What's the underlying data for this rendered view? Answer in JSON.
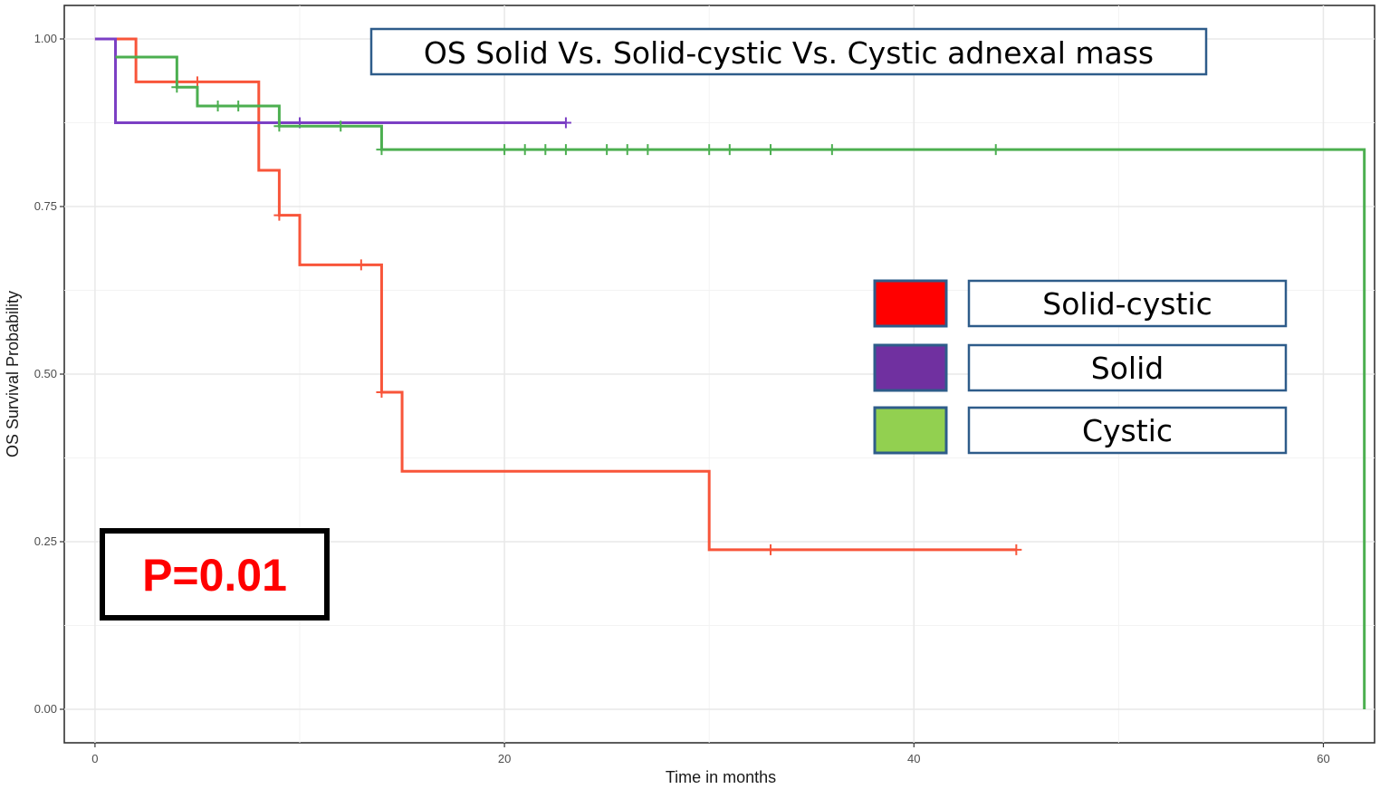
{
  "chart_data": {
    "type": "line",
    "subtype": "kaplan-meier",
    "title": "OS Solid Vs. Solid-cystic Vs. Cystic adnexal mass",
    "xlabel": "Time in months",
    "ylabel": "OS Survival Probability",
    "xlim": [
      -1.5,
      62.5
    ],
    "ylim": [
      -0.05,
      1.05
    ],
    "x_ticks": [
      0,
      20,
      40,
      60
    ],
    "x_tick_labels": [
      "0",
      "20",
      "40",
      "60"
    ],
    "y_ticks": [
      0,
      0.25,
      0.5,
      0.75,
      1
    ],
    "y_tick_labels": [
      "0.00",
      "0.25",
      "0.50",
      "0.75",
      "1.00"
    ],
    "x_minor_ticks": [
      10,
      30,
      50
    ],
    "y_minor_ticks": [
      0.125,
      0.375,
      0.625,
      0.875
    ],
    "grid": true,
    "legend_position": "right",
    "annotation": "P=0.01",
    "series": [
      {
        "name": "Solid-cystic",
        "color": "#f8553a",
        "legend_color": "#ff0000",
        "steps": [
          [
            0,
            1.0
          ],
          [
            2,
            0.936
          ],
          [
            8,
            0.804
          ],
          [
            9,
            0.737
          ],
          [
            10,
            0.663
          ],
          [
            14,
            0.473
          ],
          [
            15,
            0.355
          ],
          [
            30,
            0.238
          ],
          [
            45,
            0.238
          ]
        ],
        "censors": [
          [
            5,
            0.936
          ],
          [
            9,
            0.737
          ],
          [
            13,
            0.663
          ],
          [
            14,
            0.473
          ],
          [
            33,
            0.238
          ],
          [
            45,
            0.238
          ]
        ]
      },
      {
        "name": "Solid",
        "color": "#7b3fc4",
        "legend_color": "#7030a0",
        "steps": [
          [
            0,
            1.0
          ],
          [
            1,
            0.875
          ],
          [
            23,
            0.875
          ]
        ],
        "censors": [
          [
            10,
            0.875
          ],
          [
            23,
            0.875
          ]
        ]
      },
      {
        "name": "Cystic",
        "color": "#4caf50",
        "legend_color": "#92d050",
        "steps": [
          [
            1,
            0.973
          ],
          [
            4,
            0.928
          ],
          [
            5,
            0.9
          ],
          [
            9,
            0.87
          ],
          [
            14,
            0.835
          ],
          [
            62,
            0.0
          ]
        ],
        "censors": [
          [
            4,
            0.928
          ],
          [
            6,
            0.9
          ],
          [
            7,
            0.9
          ],
          [
            9,
            0.87
          ],
          [
            12,
            0.87
          ],
          [
            14,
            0.835
          ],
          [
            20,
            0.835
          ],
          [
            21,
            0.835
          ],
          [
            22,
            0.835
          ],
          [
            23,
            0.835
          ],
          [
            25,
            0.835
          ],
          [
            26,
            0.835
          ],
          [
            27,
            0.835
          ],
          [
            30,
            0.835
          ],
          [
            31,
            0.835
          ],
          [
            33,
            0.835
          ],
          [
            36,
            0.835
          ],
          [
            44,
            0.835
          ]
        ]
      }
    ]
  }
}
